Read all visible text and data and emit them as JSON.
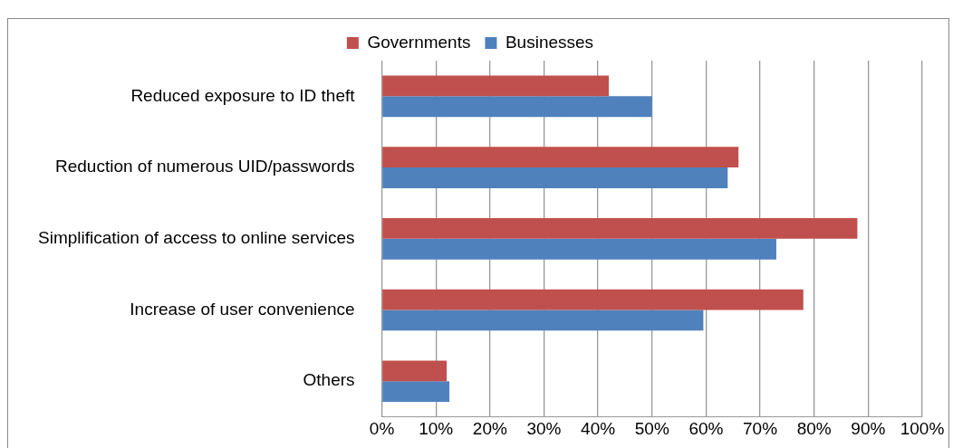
{
  "chart_data": {
    "type": "bar",
    "orientation": "horizontal",
    "categories": [
      "Reduced exposure to ID theft",
      "Reduction of numerous UID/passwords",
      "Simplification of access to online services",
      "Increase of user convenience",
      "Others"
    ],
    "series": [
      {
        "name": "Governments",
        "color": "#c0504d",
        "values": [
          42,
          66,
          88,
          78,
          12
        ]
      },
      {
        "name": "Businesses",
        "color": "#4f81bd",
        "values": [
          50,
          64,
          73,
          59.5,
          12.5
        ]
      }
    ],
    "xlim": [
      0,
      100
    ],
    "xticks": [
      {
        "value": 0,
        "label": "0%"
      },
      {
        "value": 10,
        "label": "10%"
      },
      {
        "value": 20,
        "label": "20%"
      },
      {
        "value": 30,
        "label": "30%"
      },
      {
        "value": 40,
        "label": "40%"
      },
      {
        "value": 50,
        "label": "50%"
      },
      {
        "value": 60,
        "label": "60%"
      },
      {
        "value": 70,
        "label": "70%"
      },
      {
        "value": 80,
        "label": "80%"
      },
      {
        "value": 90,
        "label": "90%"
      },
      {
        "value": 100,
        "label": "100%"
      }
    ],
    "grid": "x",
    "legend": "top"
  }
}
